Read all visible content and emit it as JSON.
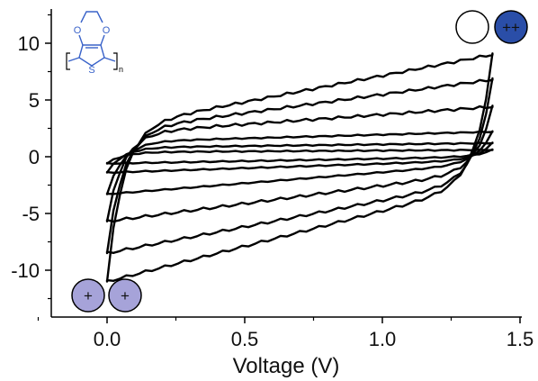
{
  "chart_data": {
    "type": "line",
    "title": "",
    "xlabel": "Voltage (V)",
    "ylabel": "",
    "xlim": [
      -0.2,
      1.5
    ],
    "ylim": [
      -14,
      13
    ],
    "xticks": [
      0.0,
      0.5,
      1.0,
      1.5
    ],
    "xtick_labels": [
      "0.0",
      "0.5",
      "1.0",
      "1.5"
    ],
    "yticks": [
      -10,
      -5,
      0,
      5,
      10
    ],
    "ytick_labels": [
      "-10",
      "-5",
      "0",
      "5",
      "10"
    ],
    "grid": false,
    "legend": "none",
    "x_range_of_sweep": [
      0.0,
      1.4
    ],
    "series": [
      {
        "upper_start": 2.5,
        "upper_end": 9.0,
        "lower_start": -11.0,
        "lower_end": -2.3
      },
      {
        "upper_start": 2.2,
        "upper_end": 6.8,
        "lower_start": -8.5,
        "lower_end": -2.0
      },
      {
        "upper_start": 2.0,
        "upper_end": 4.4,
        "lower_start": -5.7,
        "lower_end": -1.3
      },
      {
        "upper_start": 1.3,
        "upper_end": 2.2,
        "lower_start": -3.3,
        "lower_end": -0.6
      },
      {
        "upper_start": 0.8,
        "upper_end": 1.2,
        "lower_start": -1.4,
        "lower_end": -0.3
      },
      {
        "upper_start": 0.4,
        "upper_end": 0.6,
        "lower_start": -0.6,
        "lower_end": 0.0
      }
    ],
    "annotations": {
      "neutral_state_label": "+",
      "oxidized_state_label": "++",
      "monomer_atom_O": "O",
      "monomer_atom_S": "S",
      "monomer_subscript": "n"
    },
    "colors": {
      "oxidized_fill": "#2a4ea8",
      "polaron_fill": "#a6a3d9",
      "molecule": "#3a63c9",
      "loop": "#000000"
    }
  }
}
